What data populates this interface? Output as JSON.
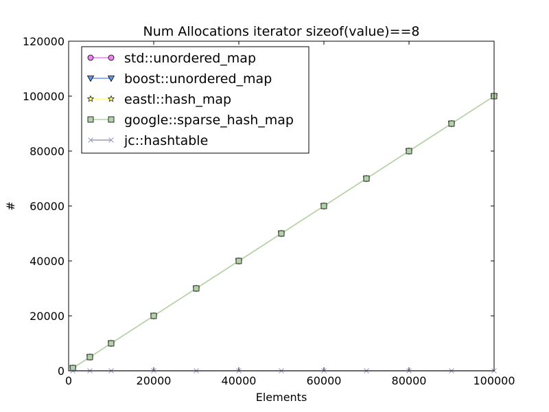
{
  "chart_data": {
    "type": "line",
    "title": "Num Allocations iterator sizeof(value)==8",
    "xlabel": "Elements",
    "ylabel": "#",
    "xlim": [
      0,
      100000
    ],
    "ylim": [
      0,
      120000
    ],
    "xticks": [
      0,
      20000,
      40000,
      60000,
      80000,
      100000
    ],
    "yticks": [
      0,
      20000,
      40000,
      60000,
      80000,
      100000,
      120000
    ],
    "grid": false,
    "legend_position": "upper-left",
    "x": [
      1000,
      5000,
      10000,
      20000,
      30000,
      40000,
      50000,
      60000,
      70000,
      80000,
      90000,
      100000
    ],
    "series": [
      {
        "name": "std::unordered_map",
        "color": "#ee82ee",
        "marker": "circle",
        "values": [
          1000,
          5000,
          10000,
          20000,
          30000,
          40000,
          50000,
          60000,
          70000,
          80000,
          90000,
          100000
        ]
      },
      {
        "name": "boost::unordered_map",
        "color": "#6495ed",
        "marker": "triangle-down",
        "values": [
          1000,
          5000,
          10000,
          20000,
          30000,
          40000,
          50000,
          60000,
          70000,
          80000,
          90000,
          100000
        ]
      },
      {
        "name": "eastl::hash_map",
        "color": "#ffff66",
        "marker": "star",
        "values": [
          1000,
          5000,
          10000,
          20000,
          30000,
          40000,
          50000,
          60000,
          70000,
          80000,
          90000,
          100000
        ]
      },
      {
        "name": "google::sparse_hash_map",
        "color": "#b2d3a8",
        "marker": "square",
        "values": [
          1000,
          5000,
          10000,
          20000,
          30000,
          40000,
          50000,
          60000,
          70000,
          80000,
          90000,
          100000
        ]
      },
      {
        "name": "jc::hashtable",
        "color": "#9999bb",
        "marker": "x",
        "values": [
          0,
          0,
          0,
          0,
          0,
          0,
          0,
          0,
          0,
          0,
          0,
          0
        ]
      }
    ]
  }
}
